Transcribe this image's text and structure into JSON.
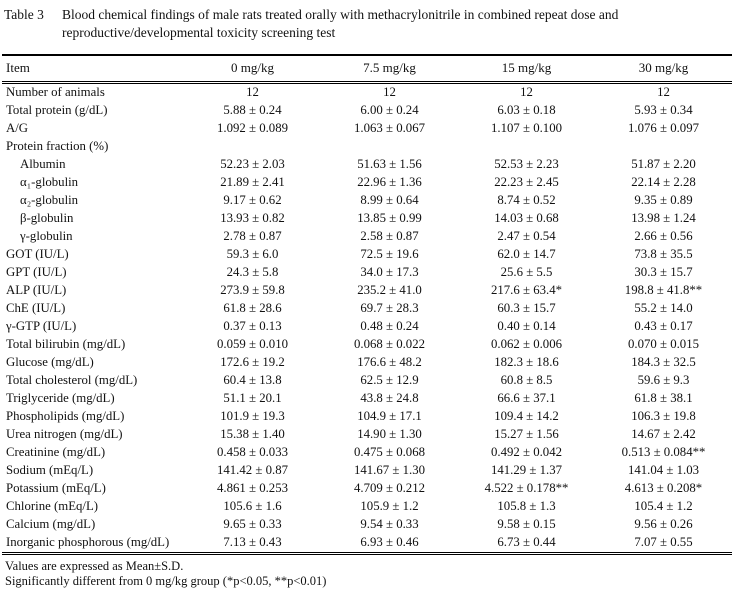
{
  "title": {
    "label": "Table 3",
    "text": "Blood chemical findings of male rats treated orally with methacrylonitrile in combined repeat dose and reproductive/developmental toxicity screening test"
  },
  "table": {
    "columns": [
      "Item",
      "0 mg/kg",
      "7.5 mg/kg",
      "15 mg/kg",
      "30 mg/kg"
    ],
    "rows": [
      {
        "label": "Number of animals",
        "indent": false,
        "values": [
          "12",
          "12",
          "12",
          "12"
        ]
      },
      {
        "label": "Total protein (g/dL)",
        "indent": false,
        "values": [
          "5.88 ± 0.24",
          "6.00 ± 0.24",
          "6.03 ± 0.18",
          "5.93 ± 0.34"
        ]
      },
      {
        "label": "A/G",
        "indent": false,
        "values": [
          "1.092 ± 0.089",
          "1.063 ± 0.067",
          "1.107 ± 0.100",
          "1.076 ± 0.097"
        ]
      },
      {
        "label": "Protein fraction (%)",
        "indent": false,
        "values": [
          "",
          "",
          "",
          ""
        ]
      },
      {
        "label": "Albumin",
        "indent": true,
        "values": [
          "52.23 ± 2.03",
          "51.63 ± 1.56",
          "52.53 ± 2.23",
          "51.87 ± 2.20"
        ]
      },
      {
        "label": "α₁-globulin",
        "indent": true,
        "values": [
          "21.89 ± 2.41",
          "22.96 ± 1.36",
          "22.23 ± 2.45",
          "22.14 ± 2.28"
        ]
      },
      {
        "label": "α₂-globulin",
        "indent": true,
        "values": [
          "9.17 ± 0.62",
          "8.99 ± 0.64",
          "8.74 ± 0.52",
          "9.35 ± 0.89"
        ]
      },
      {
        "label": "β-globulin",
        "indent": true,
        "values": [
          "13.93 ± 0.82",
          "13.85 ± 0.99",
          "14.03 ± 0.68",
          "13.98 ± 1.24"
        ]
      },
      {
        "label": "γ-globulin",
        "indent": true,
        "values": [
          "2.78 ± 0.87",
          "2.58 ± 0.87",
          "2.47 ± 0.54",
          "2.66 ± 0.56"
        ]
      },
      {
        "label": "GOT (IU/L)",
        "indent": false,
        "values": [
          "59.3 ± 6.0",
          "72.5 ± 19.6",
          "62.0 ± 14.7",
          "73.8 ± 35.5"
        ]
      },
      {
        "label": "GPT (IU/L)",
        "indent": false,
        "values": [
          "24.3 ± 5.8",
          "34.0 ± 17.3",
          "25.6 ± 5.5",
          "30.3 ± 15.7"
        ]
      },
      {
        "label": "ALP (IU/L)",
        "indent": false,
        "values": [
          "273.9 ± 59.8",
          "235.2 ± 41.0",
          "217.6 ± 63.4*",
          "198.8 ± 41.8**"
        ]
      },
      {
        "label": "ChE (IU/L)",
        "indent": false,
        "values": [
          "61.8 ± 28.6",
          "69.7 ± 28.3",
          "60.3 ± 15.7",
          "55.2 ± 14.0"
        ]
      },
      {
        "label": "γ-GTP (IU/L)",
        "indent": false,
        "values": [
          "0.37 ± 0.13",
          "0.48 ± 0.24",
          "0.40 ± 0.14",
          "0.43 ± 0.17"
        ]
      },
      {
        "label": "Total bilirubin (mg/dL)",
        "indent": false,
        "values": [
          "0.059 ± 0.010",
          "0.068 ± 0.022",
          "0.062 ± 0.006",
          "0.070 ± 0.015"
        ]
      },
      {
        "label": "Glucose (mg/dL)",
        "indent": false,
        "values": [
          "172.6 ± 19.2",
          "176.6 ± 48.2",
          "182.3 ± 18.6",
          "184.3 ± 32.5"
        ]
      },
      {
        "label": "Total cholesterol (mg/dL)",
        "indent": false,
        "values": [
          "60.4 ± 13.8",
          "62.5 ± 12.9",
          "60.8 ± 8.5",
          "59.6 ± 9.3"
        ]
      },
      {
        "label": "Triglyceride (mg/dL)",
        "indent": false,
        "values": [
          "51.1 ± 20.1",
          "43.8 ± 24.8",
          "66.6 ± 37.1",
          "61.8 ± 38.1"
        ]
      },
      {
        "label": "Phospholipids (mg/dL)",
        "indent": false,
        "values": [
          "101.9 ± 19.3",
          "104.9 ± 17.1",
          "109.4 ± 14.2",
          "106.3 ± 19.8"
        ]
      },
      {
        "label": "Urea nitrogen (mg/dL)",
        "indent": false,
        "values": [
          "15.38 ± 1.40",
          "14.90 ± 1.30",
          "15.27 ± 1.56",
          "14.67 ± 2.42"
        ]
      },
      {
        "label": "Creatinine (mg/dL)",
        "indent": false,
        "values": [
          "0.458 ± 0.033",
          "0.475 ± 0.068",
          "0.492 ± 0.042",
          "0.513 ± 0.084**"
        ]
      },
      {
        "label": "Sodium (mEq/L)",
        "indent": false,
        "values": [
          "141.42 ± 0.87",
          "141.67 ± 1.30",
          "141.29 ± 1.37",
          "141.04 ± 1.03"
        ]
      },
      {
        "label": "Potassium (mEq/L)",
        "indent": false,
        "values": [
          "4.861 ± 0.253",
          "4.709 ± 0.212",
          "4.522 ± 0.178**",
          "4.613 ± 0.208*"
        ]
      },
      {
        "label": "Chlorine (mEq/L)",
        "indent": false,
        "values": [
          "105.6 ± 1.6",
          "105.9 ± 1.2",
          "105.8 ± 1.3",
          "105.4 ± 1.2"
        ]
      },
      {
        "label": "Calcium (mg/dL)",
        "indent": false,
        "values": [
          "9.65 ± 0.33",
          "9.54 ± 0.33",
          "9.58 ± 0.15",
          "9.56 ± 0.26"
        ]
      },
      {
        "label": "Inorganic phosphorous (mg/dL)",
        "indent": false,
        "values": [
          "7.13 ± 0.43",
          "6.93 ± 0.46",
          "6.73 ± 0.44",
          "7.07 ± 0.55"
        ]
      }
    ]
  },
  "footnotes": [
    "Values are expressed as Mean±S.D.",
    "Significantly different from 0 mg/kg group (*p<0.05, **p<0.01)"
  ]
}
